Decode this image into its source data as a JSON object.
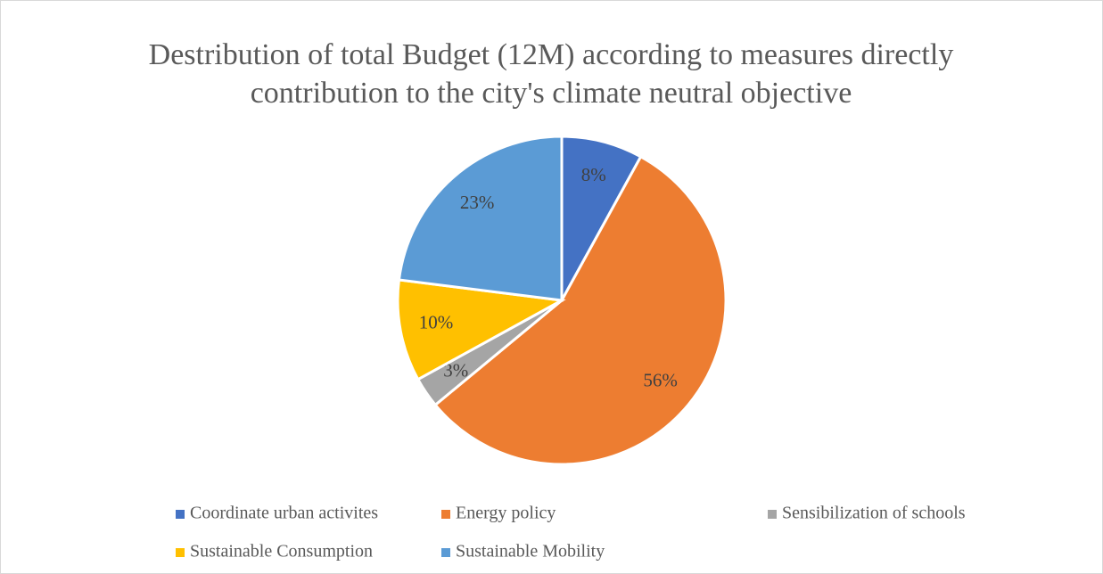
{
  "chart_data": {
    "type": "pie",
    "title": "Destribution of total Budget (12M) according to measures directly contribution to the city's climate neutral objective",
    "categories": [
      "Coordinate urban activites",
      "Energy policy",
      "Sensibilization of schools",
      "Sustainable Consumption",
      "Sustainable Mobility"
    ],
    "values": [
      8,
      56,
      3,
      10,
      23
    ],
    "value_labels": [
      "8%",
      "56%",
      "3%",
      "10%",
      "23%"
    ],
    "colors": [
      "#4472c4",
      "#ed7d31",
      "#a5a5a5",
      "#ffc000",
      "#5b9bd5"
    ],
    "legend": "bottom"
  }
}
